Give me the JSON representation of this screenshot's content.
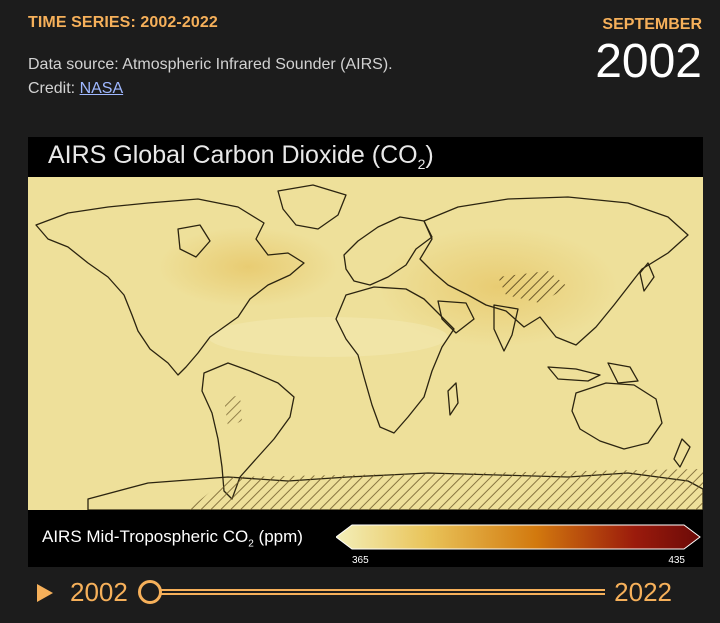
{
  "header": {
    "series_title": "TIME SERIES: 2002-2022",
    "source_text": "Data source: Atmospheric Infrared Sounder (AIRS).",
    "credit_prefix": "Credit: ",
    "credit_link": "NASA",
    "month": "SEPTEMBER",
    "year": "2002"
  },
  "map": {
    "title_main": "AIRS Global Carbon Dioxide  (CO",
    "title_sub": "2",
    "title_end": ")",
    "background_color": "#eee09a",
    "legend": {
      "label_main": "AIRS Mid-Tropospheric CO",
      "label_sub": "2",
      "label_end": " (ppm)",
      "min": "365",
      "max": "435",
      "colors": [
        "#f3efb9",
        "#e9c45a",
        "#d2790e",
        "#9b1b0c",
        "#6b0a08"
      ]
    }
  },
  "timeline": {
    "start_year": "2002",
    "end_year": "2022",
    "current_year": 2002
  }
}
